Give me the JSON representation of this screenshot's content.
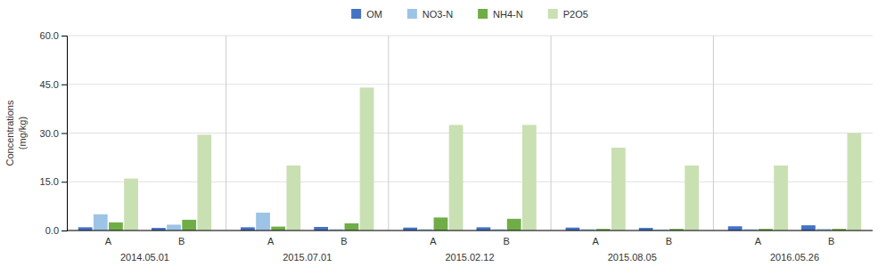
{
  "chart_data": {
    "type": "bar",
    "y_label": "Concentrations\n(mg/kg)",
    "categories": [
      [
        "2014.05.01",
        "A"
      ],
      [
        "2014.05.01",
        "B"
      ],
      [
        "2015.07.01",
        "A"
      ],
      [
        "2015.07.01",
        "B"
      ],
      [
        "2015.02.12",
        "A"
      ],
      [
        "2015.02.12",
        "B"
      ],
      [
        "2015.08.05",
        "A"
      ],
      [
        "2015.08.05",
        "B"
      ],
      [
        "2016.05.26",
        "A"
      ],
      [
        "2016.05.26",
        "B"
      ]
    ],
    "series": [
      {
        "name": "OM",
        "color": "#4472c4",
        "values": [
          1.0,
          0.8,
          1.0,
          1.1,
          0.9,
          1.0,
          0.9,
          0.8,
          1.3,
          1.6
        ]
      },
      {
        "name": "NO3-N",
        "color": "#9dc3e6",
        "values": [
          5.0,
          1.8,
          5.5,
          0.4,
          0.4,
          0.4,
          0.4,
          0.3,
          0.4,
          0.5
        ]
      },
      {
        "name": "NH4-N",
        "color": "#70ad47",
        "values": [
          2.5,
          3.3,
          1.2,
          2.2,
          4.0,
          3.6,
          0.5,
          0.5,
          0.5,
          0.5
        ]
      },
      {
        "name": "P2O5",
        "color": "#c9e0b3",
        "values": [
          16.0,
          29.5,
          20.0,
          44.0,
          32.5,
          32.5,
          25.5,
          20.0,
          20.0,
          30.0
        ]
      }
    ],
    "ylim": [
      0,
      60
    ],
    "yticks": [
      {
        "value": 0,
        "label": "0.0"
      },
      {
        "value": 15,
        "label": "15.0"
      },
      {
        "value": 30,
        "label": "30.0"
      },
      {
        "value": 45,
        "label": "45.0"
      },
      {
        "value": 60,
        "label": "60.0"
      }
    ],
    "grid": true,
    "legend": "top"
  }
}
